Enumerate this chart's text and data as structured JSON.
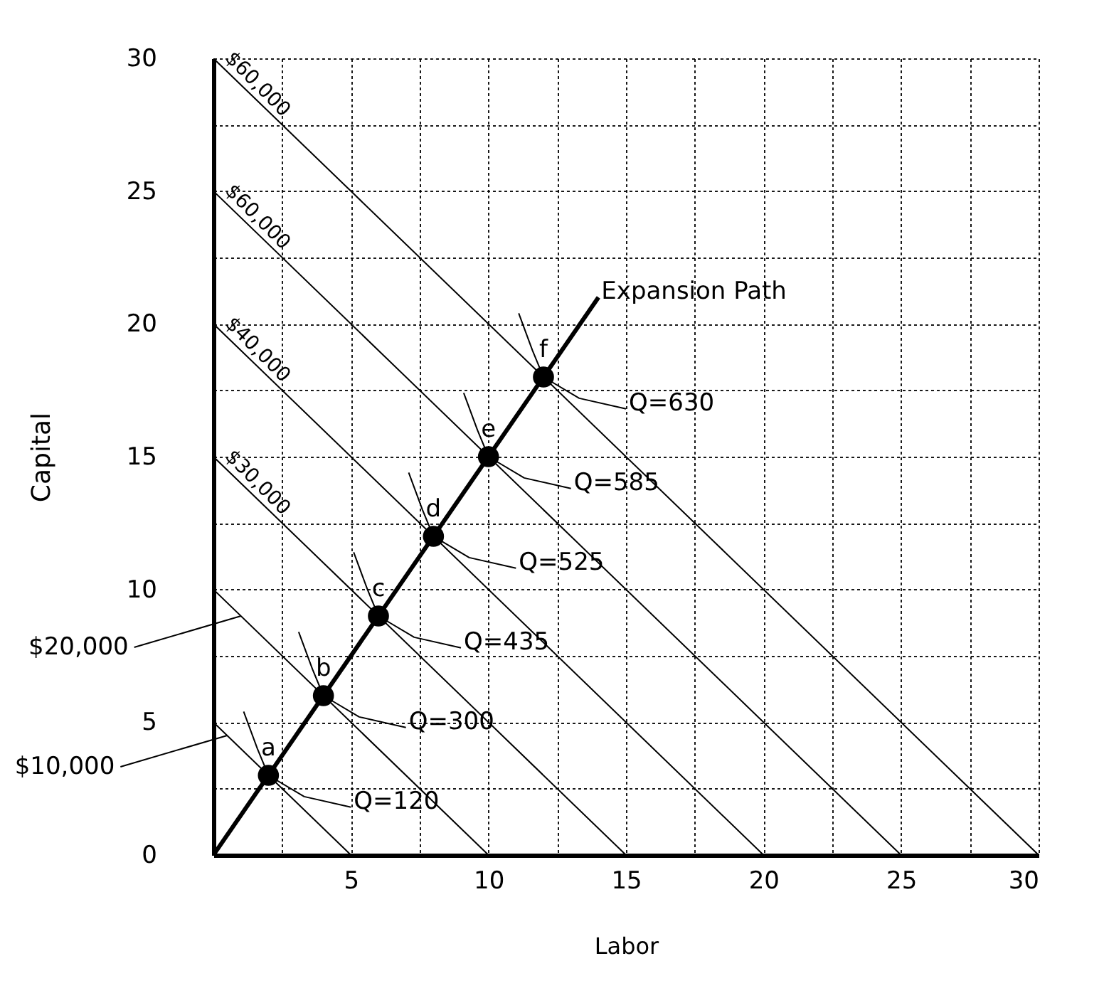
{
  "chart_data": {
    "type": "line",
    "xlabel": "Labor",
    "ylabel": "Capital",
    "xlim": [
      0,
      30
    ],
    "ylim": [
      0,
      30
    ],
    "xticks": [
      {
        "value": 0,
        "label": null
      },
      {
        "value": 2.5,
        "label": null
      },
      5,
      {
        "value": 7.5,
        "label": null
      },
      10,
      {
        "value": 12.5,
        "label": null
      },
      15,
      {
        "value": 17.5,
        "label": null
      },
      20,
      {
        "value": 22.5,
        "label": null
      },
      25,
      {
        "value": 27.5,
        "label": null
      },
      30
    ],
    "yticks": [
      0,
      {
        "value": 2.5,
        "label": null
      },
      5,
      {
        "value": 7.5,
        "label": null
      },
      10,
      {
        "value": 12.5,
        "label": null
      },
      15,
      {
        "value": 17.5,
        "label": null
      },
      20,
      {
        "value": 22.5,
        "label": null
      },
      25,
      {
        "value": 27.5,
        "label": null
      },
      30
    ],
    "grid": true,
    "legend": "left",
    "line_style": "solid",
    "series": [
      {
        "name": "$10,000",
        "color": "#000000",
        "x": [
          0,
          5
        ],
        "values": [
          5,
          0
        ]
      },
      {
        "name": "$20,000",
        "color": "#000000",
        "x": [
          0,
          10
        ],
        "values": [
          10,
          0
        ]
      },
      {
        "name": "$30,000",
        "color": "#000000",
        "x": [
          0,
          15
        ],
        "values": [
          15,
          0
        ]
      },
      {
        "name": "$40,000",
        "color": "#000000",
        "x": [
          0,
          20
        ],
        "values": [
          20,
          0
        ]
      },
      {
        "name": "$60,000",
        "color": "#000000",
        "x": [
          0,
          25
        ],
        "values": [
          25,
          0
        ]
      },
      {
        "name": "$60,000",
        "color": "#000000",
        "x": [
          0,
          30
        ],
        "values": [
          30,
          0
        ]
      },
      {
        "name": "Expansion Path",
        "color": "#000000",
        "x": [
          0,
          14
        ],
        "values": [
          0,
          21
        ]
      },
      {
        "name": "Q=120",
        "color": "#000000",
        "x": [
          1.1,
          1.6,
          2,
          3.3,
          5
        ],
        "values": [
          5.4,
          4.0,
          3,
          2.2,
          1.8
        ]
      },
      {
        "name": "Q=300",
        "color": "#000000",
        "x": [
          3.1,
          3.6,
          4,
          5.3,
          7
        ],
        "values": [
          8.4,
          7.0,
          6,
          5.2,
          4.8
        ]
      },
      {
        "name": "Q=435",
        "color": "#000000",
        "x": [
          5.1,
          5.6,
          6,
          7.3,
          9
        ],
        "values": [
          11.4,
          10.0,
          9,
          8.2,
          7.8
        ]
      },
      {
        "name": "Q=525",
        "color": "#000000",
        "x": [
          7.1,
          7.6,
          8,
          9.3,
          11
        ],
        "values": [
          14.4,
          13.0,
          12,
          11.2,
          10.8
        ]
      },
      {
        "name": "Q=585",
        "color": "#000000",
        "x": [
          9.1,
          9.6,
          10,
          11.3,
          13
        ],
        "values": [
          17.4,
          16.0,
          15,
          14.2,
          13.8
        ]
      },
      {
        "name": "Q=630",
        "color": "#000000",
        "x": [
          11.1,
          11.6,
          12,
          13.3,
          15
        ],
        "values": [
          20.4,
          19.0,
          18,
          17.2,
          16.8
        ]
      },
      {
        "type": "scatter",
        "color": "#000000",
        "marker": "circle",
        "x": [
          2,
          4,
          6,
          8,
          10,
          12
        ],
        "values": [
          3,
          6,
          9,
          12,
          15,
          18
        ],
        "value_labels": [
          "a",
          "b",
          "c",
          "d",
          "e",
          "f"
        ]
      }
    ]
  }
}
